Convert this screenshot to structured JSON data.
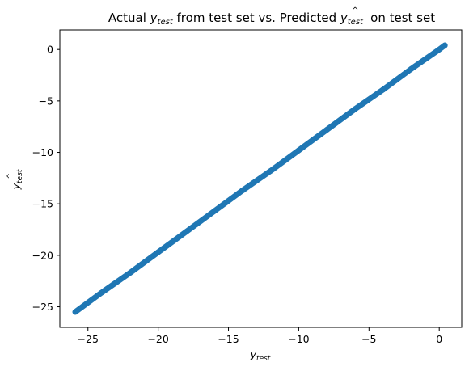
{
  "chart_data": {
    "type": "scatter",
    "title": {
      "prefix": "Actual ",
      "actual_var": "y",
      "actual_sub": "test",
      "middle": " from test set vs. Predicted ",
      "pred_var": "y",
      "pred_sub": "test",
      "pred_hat": "^",
      "suffix": " on test set"
    },
    "xlabel": {
      "var": "y",
      "sub": "test"
    },
    "ylabel": {
      "var": "y",
      "sub": "test",
      "hat": "^"
    },
    "xlim": [
      -27,
      1.6
    ],
    "ylim": [
      -27,
      1.9
    ],
    "xticks": [
      -25,
      -20,
      -15,
      -10,
      -5,
      0
    ],
    "yticks": [
      -25,
      -20,
      -15,
      -10,
      -5,
      0
    ],
    "xtick_labels": [
      "−25",
      "−20",
      "−15",
      "−10",
      "−5",
      "0"
    ],
    "ytick_labels": [
      "−25",
      "−20",
      "−15",
      "−10",
      "−5",
      "0"
    ],
    "grid": false,
    "series": [
      {
        "color": "#1f77b4",
        "x": [
          -25.9,
          -24,
          -22,
          -20,
          -18,
          -16,
          -14,
          -12,
          -10,
          -8,
          -6,
          -4,
          -2,
          0,
          0.4
        ],
        "y": [
          -25.5,
          -23.6,
          -21.7,
          -19.7,
          -17.7,
          -15.7,
          -13.7,
          -11.8,
          -9.8,
          -7.8,
          -5.8,
          -3.9,
          -1.9,
          0,
          0.4
        ]
      }
    ]
  }
}
